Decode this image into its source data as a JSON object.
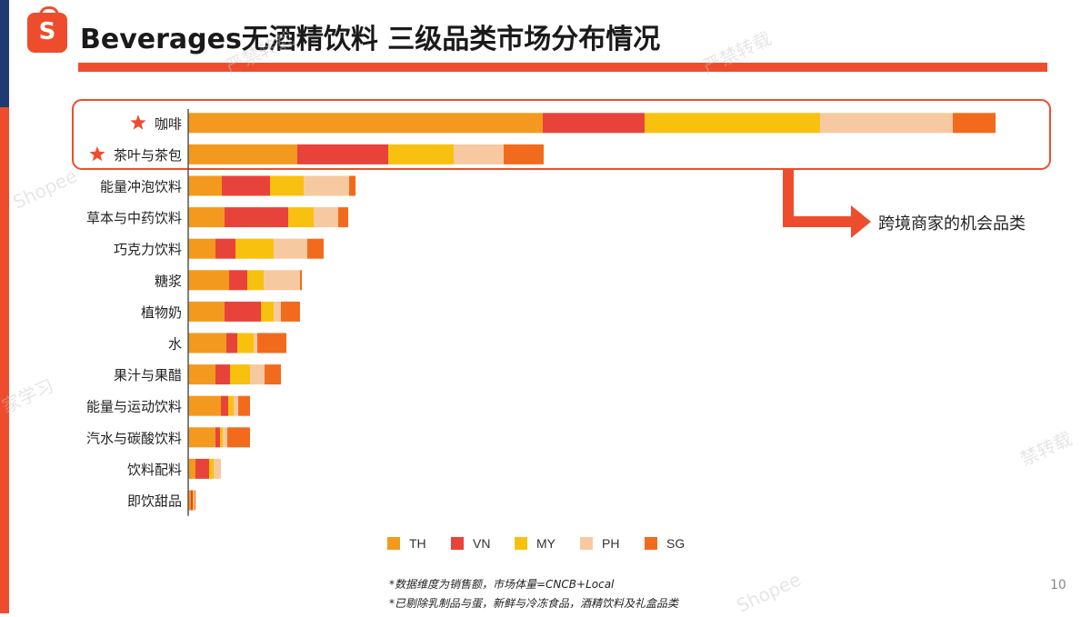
{
  "slide": {
    "title": "Beverages无酒精饮料 三级品类市场分布情况",
    "logo_letter": "S",
    "callout": "跨境商家的机会品类",
    "footnotes": [
      "*数据维度为销售额，市场体量=CNCB+Local",
      "*已剔除乳制品与蛋，新鲜与冷冻食品，酒精饮料及礼盒品类"
    ],
    "page_number": "10",
    "watermarks": [
      "严禁转载",
      "严禁转载",
      "Shopee",
      "家学习",
      "禁转载",
      "Shopee"
    ],
    "highlight_color": "#ee4d2d",
    "star_icon": "star-icon"
  },
  "chart_data": {
    "type": "bar",
    "orientation": "horizontal",
    "stacked": true,
    "categories": [
      "咖啡",
      "茶叶与茶包",
      "能量冲泡饮料",
      "草本与中药饮料",
      "巧克力饮料",
      "糖浆",
      "植物奶",
      "水",
      "果汁与果醋",
      "能量与运动饮料",
      "汽水与碳酸饮料",
      "饮料配料",
      "即饮甜品"
    ],
    "starred": [
      true,
      true,
      false,
      false,
      false,
      false,
      false,
      false,
      false,
      false,
      false,
      false,
      false
    ],
    "series": [
      {
        "name": "TH",
        "color": "#f39a1e",
        "values": [
          390,
          120,
          37,
          40,
          30,
          45,
          40,
          42,
          30,
          36,
          30,
          8,
          3
        ]
      },
      {
        "name": "VN",
        "color": "#e8433a",
        "values": [
          112,
          100,
          53,
          70,
          22,
          20,
          40,
          12,
          16,
          8,
          5,
          15,
          2
        ]
      },
      {
        "name": "MY",
        "color": "#f9c10f",
        "values": [
          193,
          72,
          37,
          28,
          42,
          18,
          14,
          18,
          22,
          6,
          3,
          5,
          1
        ]
      },
      {
        "name": "PH",
        "color": "#f7c9a0",
        "values": [
          146,
          55,
          50,
          27,
          37,
          40,
          8,
          4,
          16,
          5,
          5,
          8,
          1
        ]
      },
      {
        "name": "SG",
        "color": "#f26b1d",
        "values": [
          47,
          44,
          7,
          11,
          18,
          2,
          21,
          32,
          18,
          13,
          25,
          0,
          1
        ]
      }
    ],
    "legend_position": "bottom",
    "grid": false,
    "xlim": [
      0,
      960
    ]
  }
}
